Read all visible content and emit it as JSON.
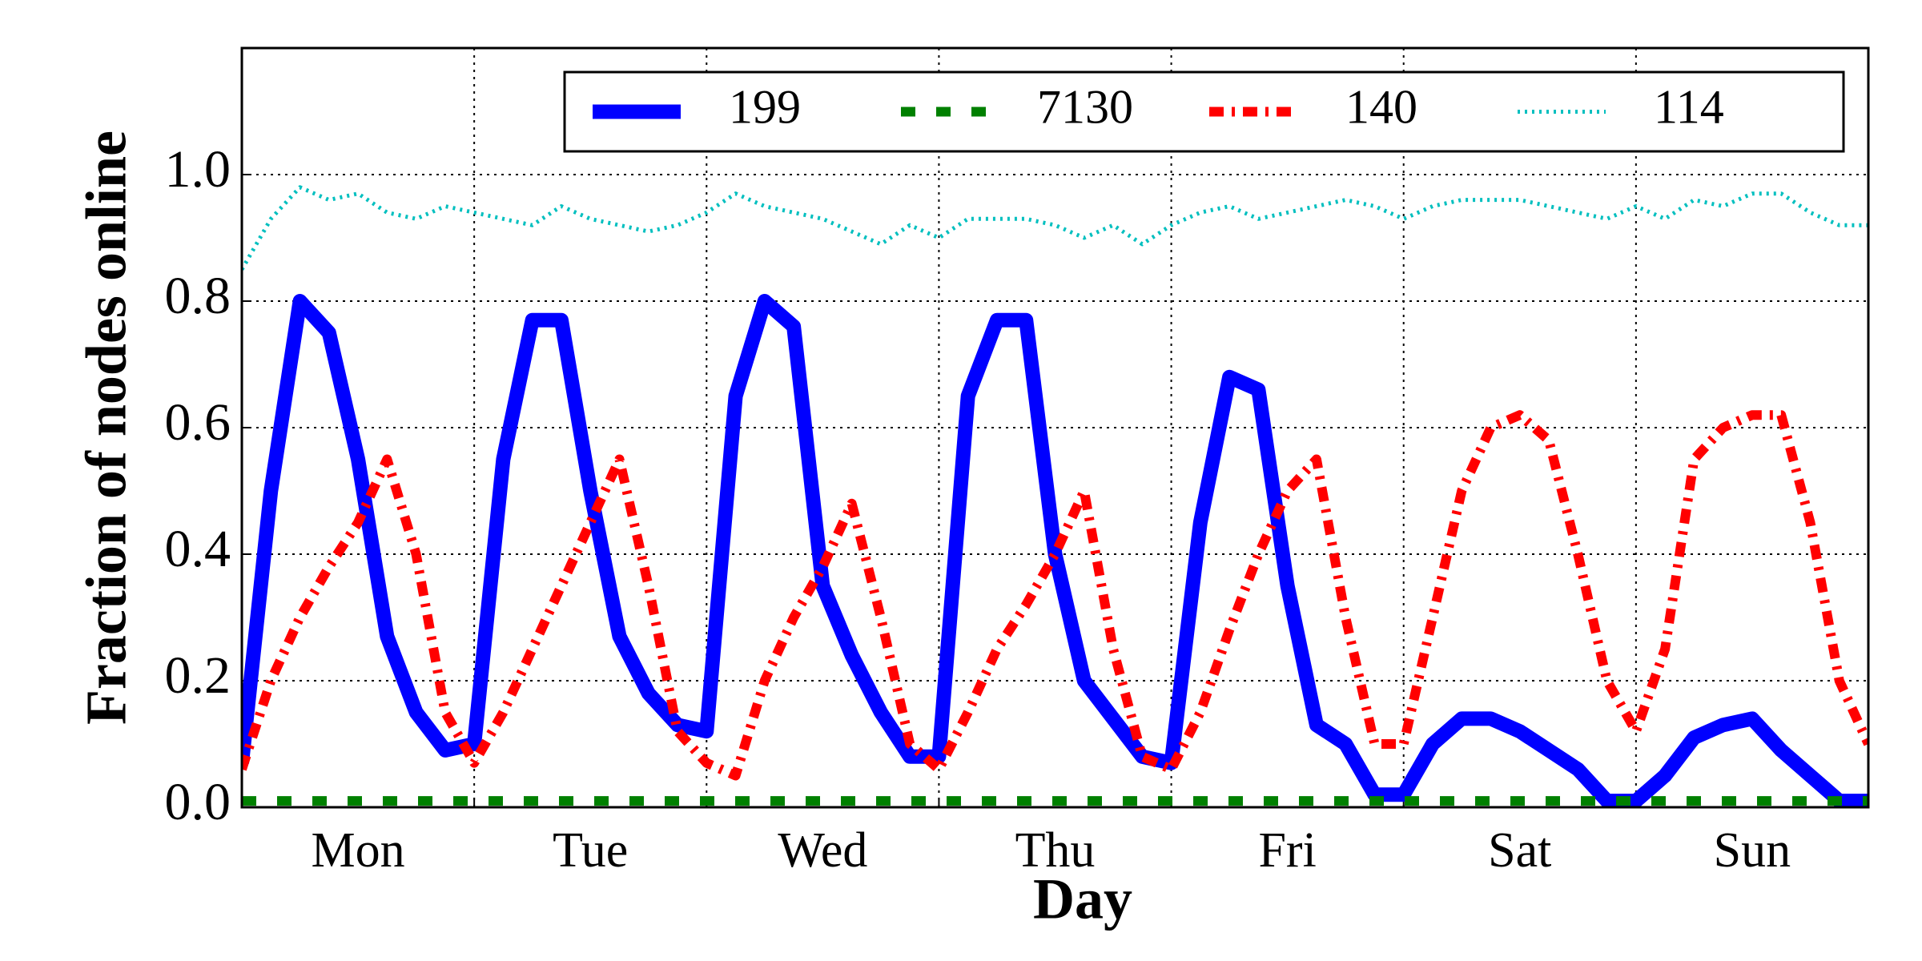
{
  "chart_data": {
    "type": "line",
    "xlabel": "Day",
    "ylabel": "Fraction of nodes online",
    "categories": [
      "Mon",
      "Tue",
      "Wed",
      "Thu",
      "Fri",
      "Sat",
      "Sun"
    ],
    "x": [
      0,
      0.125,
      0.25,
      0.375,
      0.5,
      0.625,
      0.75,
      0.875,
      1,
      1.125,
      1.25,
      1.375,
      1.5,
      1.625,
      1.75,
      1.875,
      2,
      2.125,
      2.25,
      2.375,
      2.5,
      2.625,
      2.75,
      2.875,
      3,
      3.125,
      3.25,
      3.375,
      3.5,
      3.625,
      3.75,
      3.875,
      4,
      4.125,
      4.25,
      4.375,
      4.5,
      4.625,
      4.75,
      4.875,
      5,
      5.125,
      5.25,
      5.375,
      5.5,
      5.625,
      5.75,
      5.875,
      6,
      6.125,
      6.25,
      6.375,
      6.5,
      6.625,
      6.75,
      6.875,
      7
    ],
    "xlim": [
      0,
      7
    ],
    "xticks": [
      1,
      2,
      3,
      4,
      5,
      6
    ],
    "ylim": [
      0,
      1.2
    ],
    "yticks": [
      {
        "value": 0,
        "label": "0.0"
      },
      0.2,
      0.4,
      0.6,
      0.8,
      {
        "value": 1,
        "label": "1.0"
      }
    ],
    "grid": true,
    "legend": "upper right",
    "series": [
      {
        "name": "199",
        "color": "#0000ff",
        "style": "solid",
        "values": [
          0.07,
          0.5,
          0.8,
          0.75,
          0.55,
          0.27,
          0.15,
          0.09,
          0.1,
          0.55,
          0.77,
          0.77,
          0.5,
          0.27,
          0.18,
          0.13,
          0.12,
          0.65,
          0.8,
          0.76,
          0.35,
          0.24,
          0.15,
          0.08,
          0.08,
          0.65,
          0.77,
          0.77,
          0.4,
          0.2,
          0.14,
          0.08,
          0.07,
          0.45,
          0.68,
          0.66,
          0.35,
          0.13,
          0.1,
          0.02,
          0.02,
          0.1,
          0.14,
          0.14,
          0.12,
          0.09,
          0.06,
          0.01,
          0.01,
          0.05,
          0.11,
          0.13,
          0.14,
          0.09,
          0.05,
          0.01,
          0.01
        ]
      },
      {
        "name": "7130",
        "color": "#008000",
        "style": "dashed",
        "values": [
          0.01,
          0.01,
          0.01,
          0.01,
          0.01,
          0.01,
          0.01,
          0.01,
          0.01,
          0.01,
          0.01,
          0.01,
          0.01,
          0.01,
          0.01,
          0.01,
          0.01,
          0.01,
          0.01,
          0.01,
          0.01,
          0.01,
          0.01,
          0.01,
          0.01,
          0.01,
          0.01,
          0.01,
          0.01,
          0.01,
          0.01,
          0.01,
          0.01,
          0.01,
          0.01,
          0.01,
          0.01,
          0.01,
          0.01,
          0.01,
          0.01,
          0.01,
          0.01,
          0.01,
          0.01,
          0.01,
          0.01,
          0.01,
          0.01,
          0.01,
          0.01,
          0.01,
          0.01,
          0.01,
          0.01,
          0.01,
          0.01
        ]
      },
      {
        "name": "140",
        "color": "#ff0000",
        "style": "dashdot",
        "values": [
          0.06,
          0.2,
          0.3,
          0.38,
          0.45,
          0.55,
          0.4,
          0.15,
          0.07,
          0.15,
          0.25,
          0.35,
          0.45,
          0.55,
          0.35,
          0.12,
          0.07,
          0.05,
          0.2,
          0.3,
          0.38,
          0.48,
          0.3,
          0.1,
          0.06,
          0.15,
          0.25,
          0.32,
          0.4,
          0.5,
          0.25,
          0.08,
          0.06,
          0.15,
          0.28,
          0.4,
          0.5,
          0.55,
          0.3,
          0.1,
          0.1,
          0.3,
          0.5,
          0.6,
          0.62,
          0.58,
          0.4,
          0.2,
          0.12,
          0.25,
          0.55,
          0.6,
          0.62,
          0.62,
          0.45,
          0.2,
          0.1
        ]
      },
      {
        "name": "114",
        "color": "#00bfbf",
        "style": "dotted",
        "values": [
          0.85,
          0.93,
          0.98,
          0.96,
          0.97,
          0.94,
          0.93,
          0.95,
          0.94,
          0.93,
          0.92,
          0.95,
          0.93,
          0.92,
          0.91,
          0.92,
          0.94,
          0.97,
          0.95,
          0.94,
          0.93,
          0.91,
          0.89,
          0.92,
          0.9,
          0.93,
          0.93,
          0.93,
          0.92,
          0.9,
          0.92,
          0.89,
          0.92,
          0.94,
          0.95,
          0.93,
          0.94,
          0.95,
          0.96,
          0.95,
          0.93,
          0.95,
          0.96,
          0.96,
          0.96,
          0.95,
          0.94,
          0.93,
          0.95,
          0.93,
          0.96,
          0.95,
          0.97,
          0.97,
          0.94,
          0.92,
          0.92
        ]
      }
    ]
  }
}
